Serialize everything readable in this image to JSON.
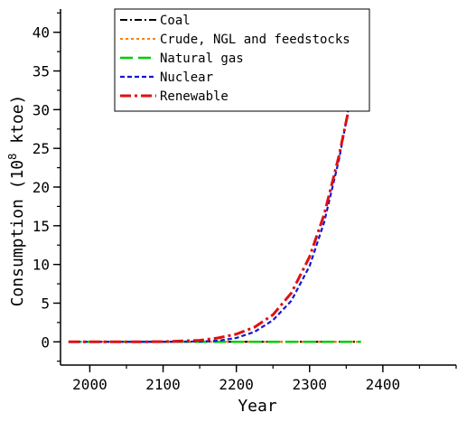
{
  "chart_data": {
    "type": "line",
    "title": "",
    "xlabel": "Year",
    "ylabel_main": "Consumption (10",
    "ylabel_sup": "8",
    "ylabel_tail": " ktoe)",
    "xlim": [
      1960,
      2500
    ],
    "ylim": [
      -3,
      43
    ],
    "xticks": [
      2000,
      2100,
      2200,
      2300,
      2400
    ],
    "yticks": [
      0,
      5,
      10,
      15,
      20,
      25,
      30,
      35,
      40
    ],
    "x_minor_step": 50,
    "y_minor_step": 2.5,
    "grid": false,
    "legend_position": "top-center",
    "series": [
      {
        "name": "Coal",
        "color": "#000000",
        "dash": "dash-dot",
        "x": [
          1971,
          2000,
          2050,
          2100,
          2150,
          2200,
          2250,
          2300,
          2350,
          2370
        ],
        "y": [
          0,
          0,
          0,
          0,
          0,
          0,
          0,
          0,
          0,
          0
        ]
      },
      {
        "name": "Crude, NGL and feedstocks",
        "color": "#ff7f0e",
        "dash": "dot",
        "x": [
          1971,
          2000,
          2050,
          2100,
          2150,
          2200,
          2250,
          2300,
          2350,
          2370
        ],
        "y": [
          0,
          0,
          0,
          0,
          0,
          0,
          0,
          0,
          0,
          0
        ]
      },
      {
        "name": "Natural gas",
        "color": "#00cc00",
        "dash": "long-dash",
        "x": [
          1971,
          2000,
          2050,
          2100,
          2150,
          2200,
          2250,
          2300,
          2350,
          2370
        ],
        "y": [
          0,
          0,
          0,
          0,
          0,
          0,
          0,
          0,
          0,
          0
        ]
      },
      {
        "name": "Nuclear",
        "color": "#1515d0",
        "dash": "short-dash",
        "x": [
          1971,
          2000,
          2050,
          2100,
          2150,
          2175,
          2200,
          2225,
          2250,
          2275,
          2300,
          2320,
          2340,
          2350,
          2360,
          2370
        ],
        "y": [
          0,
          0,
          0,
          0.01,
          0.05,
          0.15,
          0.5,
          1.3,
          2.8,
          5.3,
          9.8,
          15.5,
          23.5,
          28.5,
          34.0,
          39.0
        ]
      },
      {
        "name": "Renewable",
        "color": "#e01010",
        "dash": "dash-dot-bold",
        "x": [
          1971,
          2000,
          2050,
          2100,
          2150,
          2175,
          2200,
          2225,
          2250,
          2275,
          2300,
          2320,
          2340,
          2350,
          2360,
          2370
        ],
        "y": [
          0,
          0,
          0,
          0.02,
          0.2,
          0.5,
          1.0,
          1.9,
          3.5,
          6.3,
          11.0,
          16.5,
          24.0,
          28.5,
          33.0,
          38.0
        ]
      }
    ]
  }
}
